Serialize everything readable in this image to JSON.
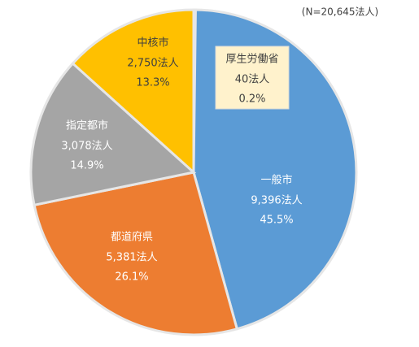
{
  "chart_data": {
    "type": "pie",
    "subtitle": "(N=20,645法人)",
    "categories": [
      "厚生労働省",
      "一般市",
      "都道府県",
      "指定都市",
      "中核市"
    ],
    "values": [
      40,
      9396,
      5381,
      3078,
      2750
    ],
    "value_labels": [
      "40法人",
      "9,396法人",
      "5,381法人",
      "3,078法人",
      "2,750法人"
    ],
    "percent_labels": [
      "0.2%",
      "45.5%",
      "26.1%",
      "14.9%",
      "13.3%"
    ],
    "colors": [
      "#7f7f7f",
      "#5b9bd5",
      "#ed7d31",
      "#a5a5a5",
      "#ffc000"
    ]
  }
}
